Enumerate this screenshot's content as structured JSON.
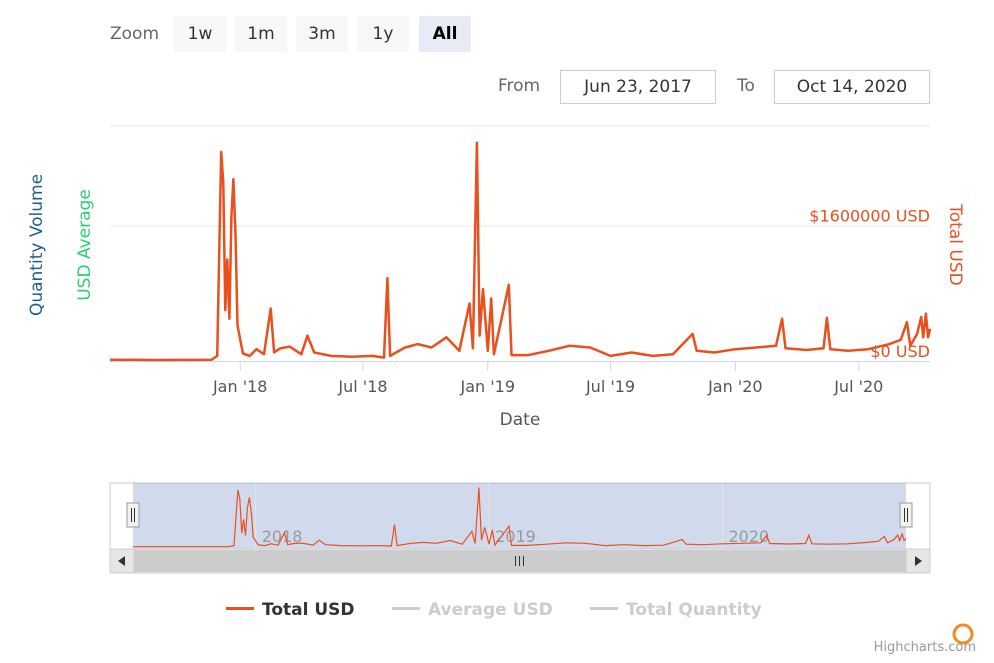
{
  "range_selector": {
    "zoom_label": "Zoom",
    "buttons": [
      "1w",
      "1m",
      "3m",
      "1y",
      "All"
    ],
    "selected": "All",
    "from_label": "From",
    "from_value": "Jun 23, 2017",
    "to_label": "To",
    "to_value": "Oct 14, 2020"
  },
  "chart_data": {
    "type": "line",
    "xlabel": "Date",
    "x_tick_labels": [
      "Jan '18",
      "Jul '18",
      "Jan '19",
      "Jul '19",
      "Jan '20",
      "Jul '20"
    ],
    "y_axes": [
      {
        "title": "Quantity Volume",
        "color": "#1f5f8b",
        "side": "left"
      },
      {
        "title": "USD Average",
        "color": "#2ecc71",
        "side": "left"
      },
      {
        "title": "Total USD",
        "color": "#e8501e",
        "side": "right",
        "tick_labels": [
          "$1600000 USD",
          "$0 USD"
        ],
        "ticks": [
          1600000,
          0
        ]
      }
    ],
    "xlim": [
      "2017-06-23",
      "2020-10-14"
    ],
    "ylim": [
      0,
      2600000
    ],
    "series": [
      {
        "name": "Total USD",
        "color": "#e8501e",
        "visible": true,
        "points": [
          [
            "2017-06-23",
            15000
          ],
          [
            "2017-09-01",
            12000
          ],
          [
            "2017-11-20",
            15000
          ],
          [
            "2017-11-28",
            60000
          ],
          [
            "2017-12-04",
            2470000
          ],
          [
            "2017-12-07",
            2100000
          ],
          [
            "2017-12-10",
            600000
          ],
          [
            "2017-12-13",
            1200000
          ],
          [
            "2017-12-16",
            500000
          ],
          [
            "2017-12-19",
            1700000
          ],
          [
            "2017-12-22",
            2150000
          ],
          [
            "2017-12-25",
            1500000
          ],
          [
            "2017-12-28",
            420000
          ],
          [
            "2018-01-05",
            90000
          ],
          [
            "2018-01-15",
            60000
          ],
          [
            "2018-01-25",
            140000
          ],
          [
            "2018-02-05",
            80000
          ],
          [
            "2018-02-15",
            620000
          ],
          [
            "2018-02-20",
            100000
          ],
          [
            "2018-03-01",
            150000
          ],
          [
            "2018-03-15",
            170000
          ],
          [
            "2018-04-01",
            80000
          ],
          [
            "2018-04-10",
            300000
          ],
          [
            "2018-04-20",
            100000
          ],
          [
            "2018-05-15",
            60000
          ],
          [
            "2018-06-15",
            50000
          ],
          [
            "2018-07-15",
            60000
          ],
          [
            "2018-08-01",
            40000
          ],
          [
            "2018-08-06",
            980000
          ],
          [
            "2018-08-10",
            60000
          ],
          [
            "2018-09-01",
            160000
          ],
          [
            "2018-09-20",
            200000
          ],
          [
            "2018-10-10",
            160000
          ],
          [
            "2018-11-01",
            280000
          ],
          [
            "2018-11-20",
            120000
          ],
          [
            "2018-12-05",
            680000
          ],
          [
            "2018-12-10",
            150000
          ],
          [
            "2018-12-16",
            2580000
          ],
          [
            "2018-12-20",
            300000
          ],
          [
            "2018-12-25",
            850000
          ],
          [
            "2019-01-01",
            120000
          ],
          [
            "2019-01-06",
            740000
          ],
          [
            "2019-01-10",
            80000
          ],
          [
            "2019-02-01",
            900000
          ],
          [
            "2019-02-05",
            70000
          ],
          [
            "2019-03-01",
            70000
          ],
          [
            "2019-04-01",
            120000
          ],
          [
            "2019-05-01",
            180000
          ],
          [
            "2019-06-01",
            160000
          ],
          [
            "2019-07-01",
            60000
          ],
          [
            "2019-08-01",
            100000
          ],
          [
            "2019-09-01",
            60000
          ],
          [
            "2019-10-01",
            80000
          ],
          [
            "2019-10-30",
            320000
          ],
          [
            "2019-11-05",
            120000
          ],
          [
            "2019-12-01",
            100000
          ],
          [
            "2020-01-01",
            140000
          ],
          [
            "2020-02-01",
            160000
          ],
          [
            "2020-03-01",
            180000
          ],
          [
            "2020-03-10",
            500000
          ],
          [
            "2020-03-15",
            150000
          ],
          [
            "2020-04-15",
            130000
          ],
          [
            "2020-05-10",
            150000
          ],
          [
            "2020-05-15",
            510000
          ],
          [
            "2020-05-20",
            140000
          ],
          [
            "2020-06-15",
            120000
          ],
          [
            "2020-07-15",
            140000
          ],
          [
            "2020-08-15",
            200000
          ],
          [
            "2020-09-01",
            250000
          ],
          [
            "2020-09-10",
            460000
          ],
          [
            "2020-09-15",
            180000
          ],
          [
            "2020-09-25",
            320000
          ],
          [
            "2020-10-01",
            520000
          ],
          [
            "2020-10-04",
            280000
          ],
          [
            "2020-10-08",
            560000
          ],
          [
            "2020-10-11",
            280000
          ],
          [
            "2020-10-14",
            380000
          ]
        ]
      },
      {
        "name": "Average USD",
        "color": "#cccccc",
        "visible": false
      },
      {
        "name": "Total Quantity",
        "color": "#cccccc",
        "visible": false
      }
    ],
    "grid": true,
    "legend_position": "bottom"
  },
  "navigator": {
    "tick_labels": [
      "2018",
      "2019",
      "2020"
    ],
    "scroll_left_icon": "arrow-left",
    "scroll_right_icon": "arrow-right",
    "scrollbar_grip": "III",
    "handle_glyph": "II"
  },
  "credits": "Highcharts.com"
}
